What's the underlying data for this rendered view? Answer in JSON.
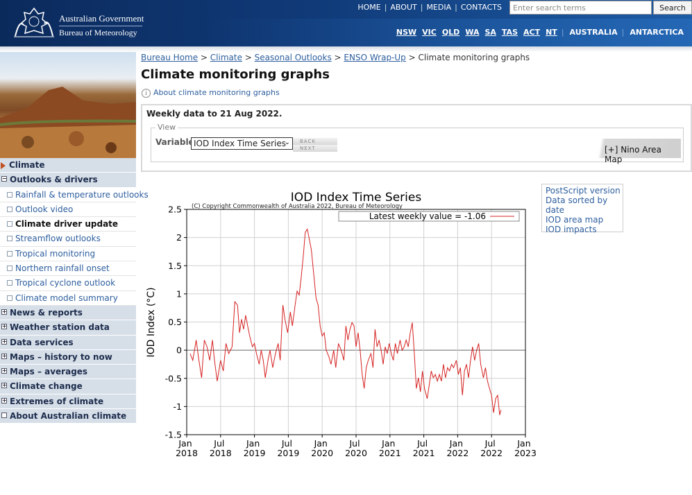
{
  "header": {
    "gov_name": "Australian Government",
    "bureau": "Bureau of Meteorology",
    "top_nav": [
      "HOME",
      "ABOUT",
      "MEDIA",
      "CONTACTS"
    ],
    "search_placeholder": "Enter search terms",
    "search_button": "Search",
    "state_nav": [
      "NSW",
      "VIC",
      "QLD",
      "WA",
      "SA",
      "TAS",
      "ACT",
      "NT",
      "AUSTRALIA",
      "ANTARCTICA"
    ]
  },
  "sidebar": {
    "section": "Climate",
    "groups": [
      "Outlooks & drivers",
      "News & reports",
      "Weather station data",
      "Data services",
      "Maps – history to now",
      "Maps – averages",
      "Climate change",
      "Extremes of climate",
      "About Australian climate"
    ],
    "sub_items": [
      "Rainfall & temperature outlooks",
      "Outlook video",
      "Climate driver update",
      "Streamflow outlooks",
      "Tropical monitoring",
      "Northern rainfall onset",
      "Tropical cyclone outlook",
      "Climate model summary"
    ]
  },
  "breadcrumb": [
    "Bureau Home",
    "Climate",
    "Seasonal Outlooks",
    "ENSO Wrap-Up",
    "Climate monitoring graphs"
  ],
  "page_title": "Climate monitoring graphs",
  "about_link": "About climate monitoring graphs",
  "weekly_note": "Weekly data to 21 Aug 2022.",
  "view": {
    "legend": "View",
    "variable_label": "Variable",
    "selected": "IOD Index Time Series",
    "back": "BACK",
    "next": "NEXT",
    "nino_map": "[+] Nino Area Map"
  },
  "side_links": [
    "PostScript version",
    "Data sorted by date",
    "IOD area map",
    "IOD impacts"
  ],
  "chart_data": {
    "type": "line",
    "title": "IOD Index Time Series",
    "copyright": "(C) Copyright Commonwealth of Australia 2022, Bureau of Meteorology",
    "y_label": "IOD Index (°C)",
    "x": [
      2018.05,
      2018.09,
      2018.14,
      2018.18,
      2018.22,
      2018.26,
      2018.3,
      2018.34,
      2018.38,
      2018.41,
      2018.45,
      2018.5,
      2018.54,
      2018.58,
      2018.62,
      2018.67,
      2018.71,
      2018.75,
      2018.78,
      2018.81,
      2018.84,
      2018.87,
      2018.9,
      2018.93,
      2018.97,
      2019.0,
      2019.03,
      2019.07,
      2019.1,
      2019.13,
      2019.16,
      2019.2,
      2019.23,
      2019.27,
      2019.31,
      2019.35,
      2019.38,
      2019.42,
      2019.45,
      2019.49,
      2019.53,
      2019.56,
      2019.6,
      2019.63,
      2019.66,
      2019.69,
      2019.72,
      2019.75,
      2019.78,
      2019.81,
      2019.84,
      2019.88,
      2019.91,
      2019.94,
      2019.97,
      2020.0,
      2020.03,
      2020.06,
      2020.1,
      2020.13,
      2020.17,
      2020.2,
      2020.24,
      2020.28,
      2020.32,
      2020.35,
      2020.38,
      2020.41,
      2020.44,
      2020.47,
      2020.5,
      2020.53,
      2020.56,
      2020.59,
      2020.62,
      2020.65,
      2020.68,
      2020.72,
      2020.75,
      2020.78,
      2020.81,
      2020.84,
      2020.87,
      2020.9,
      2020.93,
      2020.96,
      2020.99,
      2021.02,
      2021.05,
      2021.08,
      2021.11,
      2021.15,
      2021.18,
      2021.21,
      2021.24,
      2021.27,
      2021.3,
      2021.33,
      2021.36,
      2021.39,
      2021.42,
      2021.45,
      2021.48,
      2021.51,
      2021.55,
      2021.58,
      2021.61,
      2021.64,
      2021.67,
      2021.7,
      2021.73,
      2021.76,
      2021.79,
      2021.82,
      2021.85,
      2021.88,
      2021.91,
      2021.94,
      2021.98,
      2022.01,
      2022.04,
      2022.07,
      2022.1,
      2022.13,
      2022.16,
      2022.19,
      2022.22,
      2022.25,
      2022.28,
      2022.31,
      2022.34,
      2022.38,
      2022.41,
      2022.44,
      2022.47,
      2022.5,
      2022.53,
      2022.56,
      2022.59,
      2022.62,
      2022.64
    ],
    "series": [
      {
        "name": "Latest weekly value = -1.06",
        "color": "#d62020",
        "values": [
          -0.06,
          -0.18,
          0.18,
          -0.18,
          -0.49,
          0.18,
          0.06,
          -0.18,
          0.18,
          -0.18,
          -0.55,
          -0.18,
          -0.37,
          0.12,
          -0.06,
          0.06,
          0.86,
          0.8,
          0.31,
          0.55,
          0.37,
          0.62,
          0.43,
          0.25,
          0.06,
          0.12,
          -0.06,
          -0.25,
          0,
          -0.18,
          -0.49,
          -0.18,
          0,
          -0.31,
          -0.06,
          0.12,
          -0.18,
          0.8,
          0.55,
          0.31,
          0.68,
          0.43,
          0.8,
          1.05,
          0.98,
          1.29,
          1.66,
          2.09,
          2.15,
          1.97,
          1.78,
          1.29,
          0.92,
          0.8,
          0.43,
          0.25,
          0.31,
          0,
          -0.12,
          -0.25,
          0,
          -0.31,
          0.12,
          0,
          -0.18,
          0.43,
          0.18,
          0.37,
          0.49,
          0.43,
          0.06,
          0.31,
          0,
          -0.43,
          -0.68,
          -0.31,
          -0.18,
          -0.06,
          -0.31,
          0.37,
          0.06,
          0.18,
          0,
          -0.25,
          0.06,
          -0.06,
          0.12,
          -0.06,
          -0.18,
          0.12,
          -0.06,
          0.18,
          0,
          0.06,
          0.18,
          0.06,
          0.31,
          0.49,
          -0.06,
          -0.68,
          -0.49,
          -0.74,
          -0.37,
          -0.68,
          -0.86,
          -0.62,
          -0.37,
          -0.49,
          -0.43,
          -0.55,
          -0.43,
          -0.55,
          -0.25,
          -0.49,
          -0.31,
          -0.37,
          -0.25,
          -0.31,
          -0.18,
          -0.43,
          -0.31,
          -0.8,
          -0.37,
          -0.25,
          -0.49,
          -0.18,
          0.06,
          -0.18,
          0,
          0.12,
          -0.25,
          -0.49,
          -0.31,
          -0.55,
          -0.68,
          -0.8,
          -1.11,
          -0.86,
          -0.8,
          -1.15,
          -1.06
        ]
      }
    ],
    "xlim": [
      2018,
      2023
    ],
    "xticks": [
      {
        "value": 2018,
        "label": "Jan 2018"
      },
      {
        "value": 2018.5,
        "label": "Jul 2018"
      },
      {
        "value": 2019,
        "label": "Jan 2019"
      },
      {
        "value": 2019.5,
        "label": "Jul 2019"
      },
      {
        "value": 2020,
        "label": "Jan 2020"
      },
      {
        "value": 2020.5,
        "label": "Jul 2020"
      },
      {
        "value": 2021,
        "label": "Jan 2021"
      },
      {
        "value": 2021.5,
        "label": "Jul 2021"
      },
      {
        "value": 2022,
        "label": "Jan 2022"
      },
      {
        "value": 2022.5,
        "label": "Jul 2022"
      },
      {
        "value": 2023,
        "label": "Jan 2023"
      }
    ],
    "ylim": [
      -1.5,
      2.5
    ],
    "yticks": [
      2.5,
      2,
      1.5,
      1,
      0.5,
      0,
      -0.5,
      -1,
      -1.5
    ],
    "grid": true,
    "legend": "top-right"
  }
}
